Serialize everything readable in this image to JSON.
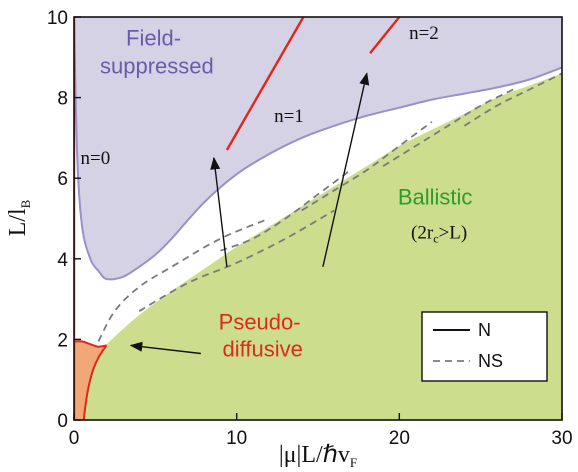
{
  "chart_data": {
    "type": "area",
    "x_label_main": "|μ|L/ℏv",
    "x_label_sub": "F",
    "y_label_main": "L/l",
    "y_label_sub": "B",
    "xlim": [
      0,
      30
    ],
    "ylim": [
      0,
      10
    ],
    "x_ticks": [
      {
        "value": 0,
        "label": "0"
      },
      {
        "value": 10,
        "label": "10"
      },
      {
        "value": 20,
        "label": "20"
      },
      {
        "value": 30,
        "label": "30"
      }
    ],
    "y_ticks": [
      {
        "value": 0,
        "label": "0"
      },
      {
        "value": 2,
        "label": "2"
      },
      {
        "value": 4,
        "label": "4"
      },
      {
        "value": 6,
        "label": "6"
      },
      {
        "value": 8,
        "label": "8"
      },
      {
        "value": 10,
        "label": "10"
      }
    ],
    "regions": {
      "field_suppressed": {
        "label_line1": "Field-",
        "label_line2": "suppressed",
        "label_at": [
          1.6,
          8.6
        ],
        "color": "#d6d2e6",
        "text_color": "#6a5ca8"
      },
      "ballistic": {
        "label_line1": "Ballistic",
        "label_line2_pre": "(2r",
        "label_line2_sub": "c",
        "label_line2_post": ">L)",
        "label_at": [
          22.2,
          4.8
        ],
        "color": "#cddd8e",
        "text_color": "#2f9a2f"
      },
      "pseudo_diffusive": {
        "label_line1": "Pseudo-",
        "label_line2": "diffusive",
        "label_at": [
          11.6,
          2.1
        ],
        "color": "#f0a878",
        "text_color": "#dd2a1d"
      }
    },
    "ballistic_boundary": {
      "x": [
        0.6,
        1.0,
        2.0,
        3.0,
        4.0,
        6.0,
        8.0,
        10.0,
        12.0,
        14.0,
        16.0,
        18.0,
        20.0,
        22.0,
        24.0,
        26.0,
        28.0,
        30.0
      ],
      "y": [
        0.0,
        1.5,
        1.88,
        2.25,
        2.6,
        3.2,
        3.75,
        4.3,
        4.8,
        5.3,
        5.8,
        6.3,
        6.8,
        7.2,
        7.6,
        8.0,
        8.3,
        8.6
      ]
    },
    "suppressed_boundary": {
      "x": [
        0.0,
        0.2,
        0.5,
        1.0,
        1.5,
        2.0,
        3.0,
        4.0,
        5.0,
        6.0,
        8.0,
        10.0,
        12.0,
        14.0,
        16.0,
        18.0,
        20.0,
        22.0,
        24.0,
        26.0,
        28.0,
        30.0
      ],
      "y": [
        10.0,
        6.5,
        4.8,
        4.0,
        3.7,
        3.5,
        3.55,
        3.8,
        4.1,
        4.5,
        5.4,
        6.1,
        6.6,
        7.0,
        7.3,
        7.55,
        7.75,
        7.95,
        8.1,
        8.25,
        8.45,
        8.75
      ]
    },
    "pseudo_diffusive_boundary": {
      "x": [
        0.0,
        0.5,
        1.0,
        1.5,
        2.0
      ],
      "y": [
        1.95,
        1.95,
        1.88,
        1.82,
        1.85
      ]
    },
    "N_curves": [
      {
        "label": "n=0",
        "label_at": [
          0.4,
          6.35
        ],
        "x": [
          0.0,
          0.0
        ],
        "y": [
          0.0,
          10.0
        ]
      },
      {
        "label": "n=1",
        "label_at": [
          12.3,
          7.4
        ],
        "x": [
          9.4,
          14.1
        ],
        "y": [
          6.7,
          10.0
        ]
      },
      {
        "label": "n=2",
        "label_at": [
          20.6,
          9.45
        ],
        "x": [
          18.2,
          20.0
        ],
        "y": [
          9.1,
          10.0
        ]
      }
    ],
    "NS_curves": [
      {
        "x": [
          1.5,
          2.5,
          4.0,
          6.0,
          9.0,
          12.0
        ],
        "y": [
          1.95,
          2.7,
          3.3,
          3.8,
          4.5,
          5.0
        ]
      },
      {
        "x": [
          4.0,
          7.0,
          10.0,
          13.0,
          16.0
        ],
        "y": [
          2.7,
          3.4,
          3.9,
          4.5,
          5.2
        ]
      },
      {
        "x": [
          9.0,
          11.0,
          13.0,
          15.0,
          17.0
        ],
        "y": [
          4.2,
          4.5,
          5.0,
          5.6,
          6.2
        ]
      },
      {
        "x": [
          14.0,
          16.0,
          18.0,
          20.0,
          22.0
        ],
        "y": [
          5.2,
          5.7,
          6.2,
          6.8,
          7.4
        ]
      },
      {
        "x": [
          19.0,
          21.0,
          23.0,
          25.0,
          27.0
        ],
        "y": [
          6.3,
          6.8,
          7.3,
          7.8,
          8.2
        ]
      },
      {
        "x": [
          24.0,
          26.0,
          28.0,
          30.0
        ],
        "y": [
          7.3,
          7.8,
          8.2,
          8.6
        ]
      }
    ],
    "legend": {
      "position": "lower-right",
      "entries": [
        {
          "label": "N",
          "style": "solid"
        },
        {
          "label": "NS",
          "style": "dashed"
        }
      ]
    },
    "arrows": [
      {
        "from": [
          9.4,
          3.8
        ],
        "to": [
          8.6,
          6.5
        ]
      },
      {
        "from": [
          15.3,
          3.8
        ],
        "to": [
          18.0,
          8.6
        ]
      },
      {
        "from": [
          7.8,
          1.65
        ],
        "to": [
          3.5,
          1.85
        ]
      }
    ],
    "colors": {
      "N_line": "#e0261d",
      "N_line_suppressed": "#9a90c8",
      "NS_line": "#7a7a7a",
      "axes": "#111111"
    }
  }
}
